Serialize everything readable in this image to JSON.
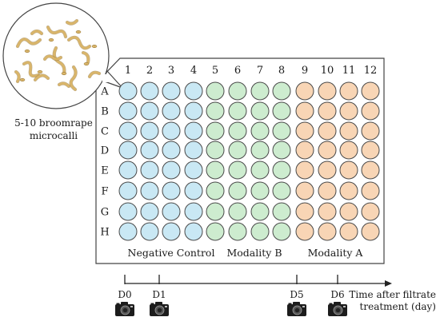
{
  "callout": {
    "caption_line1": "5-10 broomrape",
    "caption_line2": "microcalli"
  },
  "plate": {
    "columns": [
      "1",
      "2",
      "3",
      "4",
      "5",
      "6",
      "7",
      "8",
      "9",
      "10",
      "11",
      "12"
    ],
    "rows": [
      "A",
      "B",
      "C",
      "D",
      "E",
      "F",
      "G",
      "H"
    ],
    "groups": [
      {
        "label": "Negative Control",
        "columns": [
          1,
          2,
          3,
          4
        ],
        "color": "#c9e8f4"
      },
      {
        "label": "Modality B",
        "columns": [
          5,
          6,
          7,
          8
        ],
        "color": "#cdeccf"
      },
      {
        "label": "Modality A",
        "columns": [
          9,
          10,
          11,
          12
        ],
        "color": "#f8d5b5"
      }
    ]
  },
  "timeline": {
    "title_line1": "Time after filtrate",
    "title_line2": "treatment (day)",
    "marks": [
      "D0",
      "D1",
      "D5",
      "D6"
    ]
  },
  "colors": {
    "well_stroke": "#4a4a4a",
    "plate_stroke": "#444444",
    "callus": "#d9b56a"
  }
}
